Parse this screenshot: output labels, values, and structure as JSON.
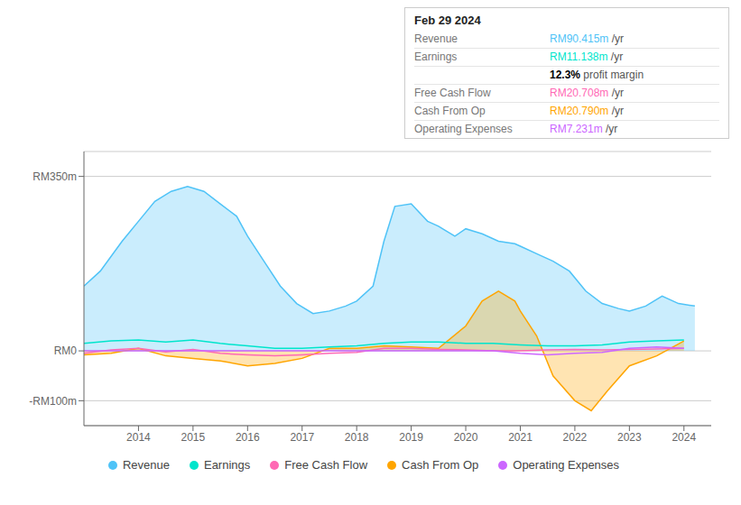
{
  "chart_data": {
    "type": "line",
    "xlim": [
      2013.0,
      2024.5
    ],
    "xticks": [
      2014,
      2015,
      2016,
      2017,
      2018,
      2019,
      2020,
      2021,
      2022,
      2023,
      2024
    ],
    "ylim": [
      -150,
      400
    ],
    "yticks": [
      {
        "value": -100,
        "label": "-RM100m"
      },
      {
        "value": 0,
        "label": "RM0"
      },
      {
        "value": 350,
        "label": "RM350m"
      }
    ],
    "grid": true,
    "legend": "bottom",
    "series": [
      {
        "name": "Revenue",
        "type": "area",
        "color": "#4fc3f7",
        "x": [
          2013.0,
          2013.3,
          2013.7,
          2014.0,
          2014.3,
          2014.6,
          2014.9,
          2015.2,
          2015.5,
          2015.8,
          2016.0,
          2016.3,
          2016.6,
          2016.9,
          2017.2,
          2017.5,
          2017.8,
          2018.0,
          2018.3,
          2018.5,
          2018.7,
          2019.0,
          2019.3,
          2019.5,
          2019.8,
          2020.0,
          2020.3,
          2020.6,
          2020.9,
          2021.0,
          2021.3,
          2021.6,
          2021.9,
          2022.2,
          2022.5,
          2022.8,
          2023.0,
          2023.3,
          2023.6,
          2023.9,
          2024.2
        ],
        "values": [
          130,
          160,
          220,
          260,
          300,
          320,
          330,
          320,
          295,
          270,
          230,
          180,
          130,
          95,
          75,
          80,
          90,
          100,
          130,
          220,
          290,
          295,
          260,
          250,
          230,
          245,
          235,
          220,
          215,
          210,
          195,
          180,
          160,
          120,
          95,
          85,
          80,
          90,
          110,
          95,
          90
        ]
      },
      {
        "name": "Earnings",
        "type": "line",
        "color": "#00e5cc",
        "x": [
          2013.0,
          2013.5,
          2014.0,
          2014.5,
          2015.0,
          2015.5,
          2016.0,
          2016.5,
          2017.0,
          2017.5,
          2018.0,
          2018.5,
          2019.0,
          2019.5,
          2020.0,
          2020.5,
          2021.0,
          2021.5,
          2022.0,
          2022.5,
          2023.0,
          2023.5,
          2024.0
        ],
        "values": [
          15,
          20,
          22,
          18,
          22,
          15,
          10,
          5,
          5,
          8,
          10,
          15,
          18,
          18,
          15,
          15,
          12,
          10,
          10,
          12,
          18,
          20,
          22
        ]
      },
      {
        "name": "Free Cash Flow",
        "type": "line",
        "color": "#ff69b4",
        "x": [
          2013.0,
          2013.5,
          2014.0,
          2014.5,
          2015.0,
          2015.5,
          2016.0,
          2016.5,
          2017.0,
          2017.5,
          2018.0,
          2018.5,
          2019.0,
          2019.5,
          2020.0,
          2020.5,
          2021.0,
          2021.5,
          2022.0,
          2022.5,
          2023.0,
          2023.5,
          2024.0
        ],
        "values": [
          -5,
          2,
          5,
          -2,
          3,
          -5,
          -8,
          -10,
          -8,
          -5,
          -3,
          5,
          5,
          3,
          2,
          0,
          0,
          2,
          3,
          2,
          3,
          4,
          5
        ]
      },
      {
        "name": "Cash From Op",
        "type": "area",
        "color": "#ffa500",
        "x": [
          2013.0,
          2013.5,
          2014.0,
          2014.5,
          2015.0,
          2015.5,
          2016.0,
          2016.5,
          2017.0,
          2017.5,
          2018.0,
          2018.5,
          2019.0,
          2019.5,
          2020.0,
          2020.3,
          2020.6,
          2020.9,
          2021.0,
          2021.3,
          2021.6,
          2022.0,
          2022.3,
          2022.6,
          2023.0,
          2023.5,
          2024.0
        ],
        "values": [
          -8,
          -5,
          5,
          -10,
          -15,
          -20,
          -30,
          -25,
          -15,
          5,
          5,
          10,
          8,
          5,
          50,
          100,
          120,
          100,
          80,
          30,
          -50,
          -100,
          -120,
          -80,
          -30,
          -10,
          20
        ]
      },
      {
        "name": "Operating Expenses",
        "type": "line",
        "color": "#cc66ff",
        "x": [
          2013.0,
          2013.5,
          2014.0,
          2014.5,
          2015.0,
          2015.5,
          2016.0,
          2016.5,
          2017.0,
          2017.5,
          2018.0,
          2018.5,
          2019.0,
          2019.5,
          2020.0,
          2020.5,
          2021.0,
          2021.5,
          2022.0,
          2022.5,
          2023.0,
          2023.5,
          2024.0
        ],
        "values": [
          0,
          0,
          0,
          0,
          0,
          0,
          0,
          0,
          0,
          0,
          0,
          0,
          0,
          0,
          0,
          0,
          -5,
          -8,
          -5,
          -3,
          5,
          8,
          5
        ]
      }
    ],
    "annotations": {
      "title": "Feb 29 2024",
      "rows": [
        {
          "label": "Revenue",
          "value": "RM90.415m",
          "suffix": " /yr",
          "color": "#4fc3f7"
        },
        {
          "label": "Earnings",
          "value": "RM11.138m",
          "suffix": " /yr",
          "color": "#00e5cc"
        },
        {
          "value": "12.3%",
          "suffix": " profit margin",
          "color": "#000000"
        },
        {
          "label": "Free Cash Flow",
          "value": "RM20.708m",
          "suffix": " /yr",
          "color": "#ff69b4"
        },
        {
          "label": "Cash From Op",
          "value": "RM20.790m",
          "suffix": " /yr",
          "color": "#ffa500"
        },
        {
          "label": "Operating Expenses",
          "value": "RM7.231m",
          "suffix": " /yr",
          "color": "#cc66ff"
        }
      ]
    }
  }
}
